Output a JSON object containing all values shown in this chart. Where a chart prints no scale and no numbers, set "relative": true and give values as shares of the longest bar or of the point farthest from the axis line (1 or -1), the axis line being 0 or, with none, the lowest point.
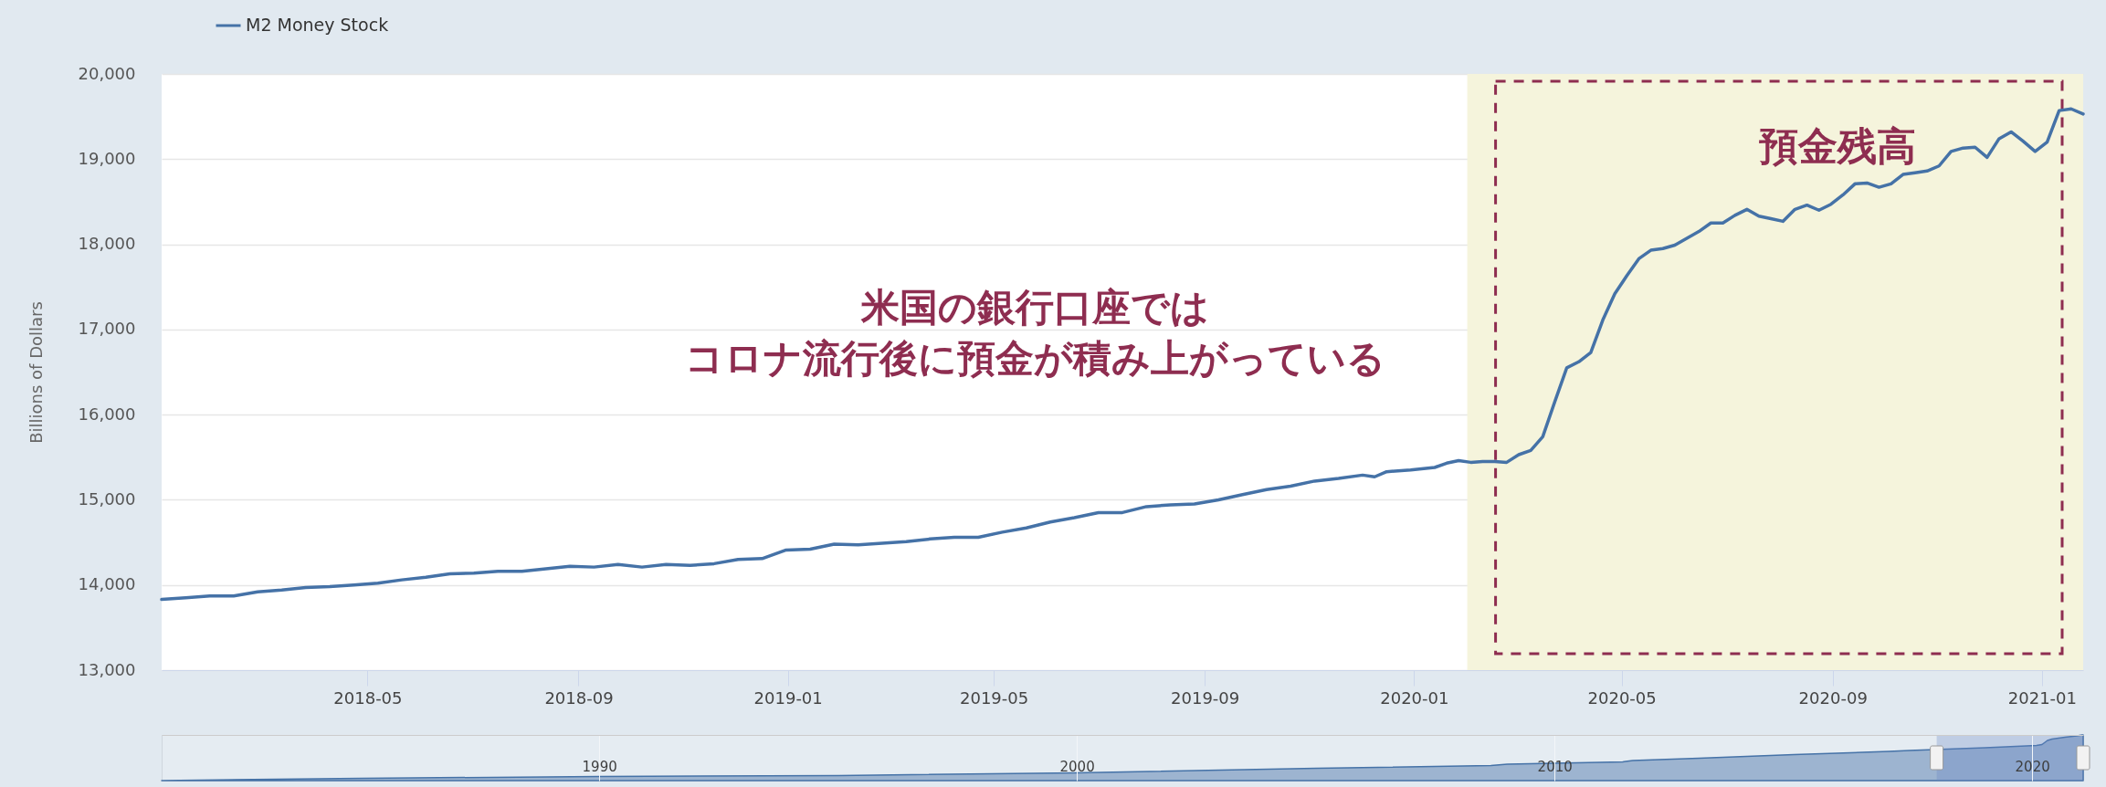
{
  "chart_data": [
    {
      "type": "line",
      "ylabel": "Billions of Dollars",
      "x": [
        "2018-01-01",
        "2018-01-15",
        "2018-01-29",
        "2018-02-12",
        "2018-02-26",
        "2018-03-12",
        "2018-03-26",
        "2018-04-09",
        "2018-04-23",
        "2018-05-07",
        "2018-05-21",
        "2018-06-04",
        "2018-06-18",
        "2018-07-02",
        "2018-07-16",
        "2018-07-30",
        "2018-08-13",
        "2018-08-27",
        "2018-09-10",
        "2018-09-24",
        "2018-10-08",
        "2018-10-22",
        "2018-11-05",
        "2018-11-19",
        "2018-12-03",
        "2018-12-17",
        "2018-12-31",
        "2019-01-14",
        "2019-01-28",
        "2019-02-11",
        "2019-02-25",
        "2019-03-11",
        "2019-03-25",
        "2019-04-08",
        "2019-04-22",
        "2019-05-06",
        "2019-05-20",
        "2019-06-03",
        "2019-06-17",
        "2019-07-01",
        "2019-07-15",
        "2019-07-29",
        "2019-08-12",
        "2019-08-26",
        "2019-09-09",
        "2019-09-23",
        "2019-10-07",
        "2019-10-21",
        "2019-11-04",
        "2019-11-18",
        "2019-12-02",
        "2019-12-09",
        "2019-12-16",
        "2019-12-30",
        "2020-01-13",
        "2020-01-20",
        "2020-01-27",
        "2020-02-03",
        "2020-02-10",
        "2020-02-17",
        "2020-02-24",
        "2020-03-02",
        "2020-03-09",
        "2020-03-16",
        "2020-03-23",
        "2020-03-30",
        "2020-04-06",
        "2020-04-13",
        "2020-04-20",
        "2020-04-27",
        "2020-05-04",
        "2020-05-11",
        "2020-05-18",
        "2020-05-25",
        "2020-06-01",
        "2020-06-08",
        "2020-06-15",
        "2020-06-22",
        "2020-06-29",
        "2020-07-06",
        "2020-07-13",
        "2020-07-20",
        "2020-07-27",
        "2020-08-03",
        "2020-08-10",
        "2020-08-17",
        "2020-08-24",
        "2020-08-31",
        "2020-09-07",
        "2020-09-14",
        "2020-09-21",
        "2020-09-28",
        "2020-10-05",
        "2020-10-12",
        "2020-10-19",
        "2020-10-26",
        "2020-11-02",
        "2020-11-09",
        "2020-11-16",
        "2020-11-23",
        "2020-11-30",
        "2020-12-07",
        "2020-12-14",
        "2020-12-21",
        "2020-12-28",
        "2021-01-04",
        "2021-01-11",
        "2021-01-18",
        "2021-01-25"
      ],
      "series": [
        {
          "name": "M2 Money Stock",
          "color": "#4572a7",
          "values": [
            13830,
            13850,
            13870,
            13870,
            13920,
            13940,
            13970,
            13980,
            14000,
            14020,
            14060,
            14090,
            14130,
            14140,
            14160,
            14160,
            14190,
            14220,
            14210,
            14240,
            14210,
            14240,
            14230,
            14250,
            14300,
            14310,
            14410,
            14420,
            14480,
            14470,
            14490,
            14510,
            14540,
            14560,
            14560,
            14620,
            14670,
            14740,
            14790,
            14850,
            14850,
            14920,
            14940,
            14950,
            15000,
            15060,
            15120,
            15160,
            15220,
            15250,
            15290,
            15270,
            15330,
            15350,
            15380,
            15430,
            15460,
            15440,
            15450,
            15450,
            15440,
            15530,
            15580,
            15740,
            16150,
            16550,
            16620,
            16730,
            17110,
            17420,
            17630,
            17830,
            17930,
            17950,
            17990,
            18070,
            18150,
            18250,
            18250,
            18340,
            18410,
            18330,
            18300,
            18270,
            18410,
            18460,
            18400,
            18470,
            18580,
            18710,
            18720,
            18670,
            18710,
            18820,
            18840,
            18860,
            18920,
            19090,
            19130,
            19140,
            19020,
            19240,
            19320,
            19210,
            19090,
            19200,
            19570,
            19590,
            19530
          ]
        }
      ],
      "xlim": [
        "2018-01-01",
        "2021-01-25"
      ],
      "xticks": [
        "2018-05",
        "2018-09",
        "2019-01",
        "2019-05",
        "2019-09",
        "2020-01",
        "2020-05",
        "2020-09",
        "2021-01"
      ],
      "ylim": [
        13000,
        20000
      ],
      "yticks": [
        {
          "value": 13000,
          "label": "13,000"
        },
        {
          "value": 14000,
          "label": "14,000"
        },
        {
          "value": 15000,
          "label": "15,000"
        },
        {
          "value": 16000,
          "label": "16,000"
        },
        {
          "value": 17000,
          "label": "17,000"
        },
        {
          "value": 18000,
          "label": "18,000"
        },
        {
          "value": 19000,
          "label": "19,000"
        },
        {
          "value": 20000,
          "label": "20,000"
        }
      ],
      "grid": "y",
      "legend": "top left",
      "bands": [
        {
          "axis": "x",
          "from": "2020-02-01",
          "to": "2021-01-25",
          "label": "預金残高",
          "color": "#f5f4dc"
        }
      ],
      "annotations": [
        "米国の銀行口座では",
        "コロナ流行後に預金が積み上がっている"
      ]
    },
    {
      "type": "area",
      "relative": true,
      "x": [
        "1980-11-03",
        "1985-01-07",
        "1990-01-01",
        "1995-01-02",
        "2000-01-03",
        "2005-01-03",
        "2008-09-01",
        "2009-01-05",
        "2011-06-06",
        "2011-08-22",
        "2013-01-07",
        "2015-01-05",
        "2017-01-02",
        "2017-06-05",
        "2019-01-07",
        "2020-02-03",
        "2020-03-16",
        "2020-04-27",
        "2020-06-01",
        "2020-09-07",
        "2020-12-07",
        "2021-01-18",
        "2021-01-25"
      ],
      "series": [
        {
          "color": "#4572a7",
          "values": [
            0,
            0.05,
            0.09,
            0.11,
            0.17,
            0.27,
            0.33,
            0.36,
            0.41,
            0.44,
            0.49,
            0.57,
            0.64,
            0.66,
            0.72,
            0.77,
            0.79,
            0.88,
            0.91,
            0.95,
            0.98,
            1,
            1
          ]
        }
      ],
      "xlim": [
        "1980-11-03",
        "2021-01-25"
      ],
      "xticks": [
        "1990",
        "2000",
        "2010",
        "2020"
      ],
      "grid": "x",
      "bands": [
        {
          "axis": "x",
          "from": "2018-01-01",
          "to": "2021-01-25",
          "color": "#6685c2"
        }
      ]
    }
  ]
}
